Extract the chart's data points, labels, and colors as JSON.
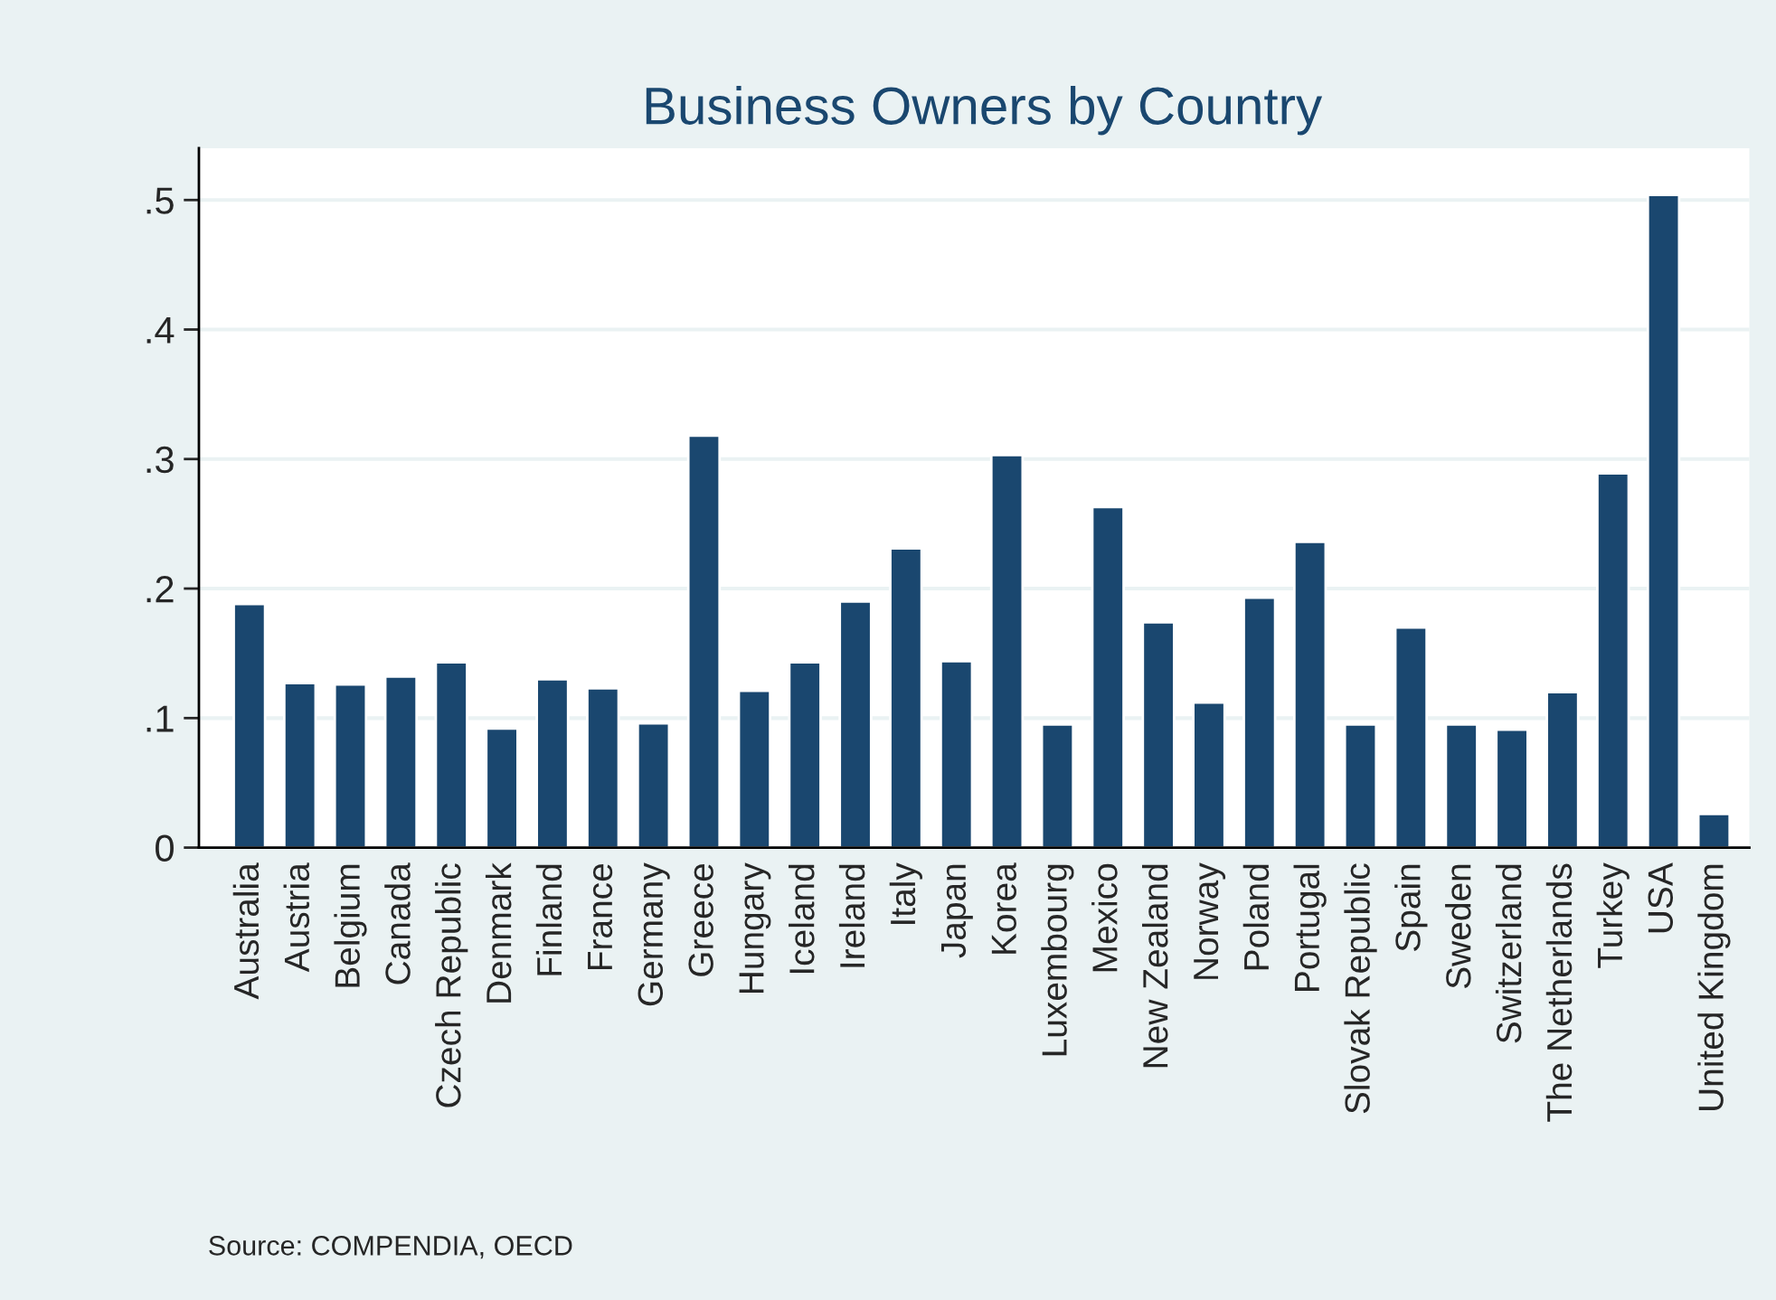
{
  "chart_data": {
    "type": "bar",
    "title": "Business Owners by Country",
    "categories": [
      "Australia",
      "Austria",
      "Belgium",
      "Canada",
      "Czech Republic",
      "Denmark",
      "Finland",
      "France",
      "Germany",
      "Greece",
      "Hungary",
      "Iceland",
      "Ireland",
      "Italy",
      "Japan",
      "Korea",
      "Luxembourg",
      "Mexico",
      "New Zealand",
      "Norway",
      "Poland",
      "Portugal",
      "Slovak Republic",
      "Spain",
      "Sweden",
      "Switzerland",
      "The Netherlands",
      "Turkey",
      "USA",
      "United Kingdom"
    ],
    "values": [
      0.188,
      0.127,
      0.126,
      0.132,
      0.143,
      0.092,
      0.13,
      0.123,
      0.096,
      0.318,
      0.121,
      0.143,
      0.19,
      0.231,
      0.144,
      0.303,
      0.095,
      0.263,
      0.174,
      0.112,
      0.193,
      0.236,
      0.095,
      0.17,
      0.095,
      0.091,
      0.12,
      0.289,
      0.504,
      0.026
    ],
    "color": "#1a476f",
    "ylim": [
      0,
      0.54
    ],
    "yticks": [
      0,
      {
        "value": 0.1,
        "label": ".1"
      },
      {
        "value": 0.2,
        "label": ".2"
      },
      {
        "value": 0.3,
        "label": ".3"
      },
      {
        "value": 0.4,
        "label": ".4"
      },
      {
        "value": 0.5,
        "label": ".5"
      }
    ],
    "grid": "y",
    "annotations": [
      "Source: COMPENDIA, OECD"
    ]
  }
}
